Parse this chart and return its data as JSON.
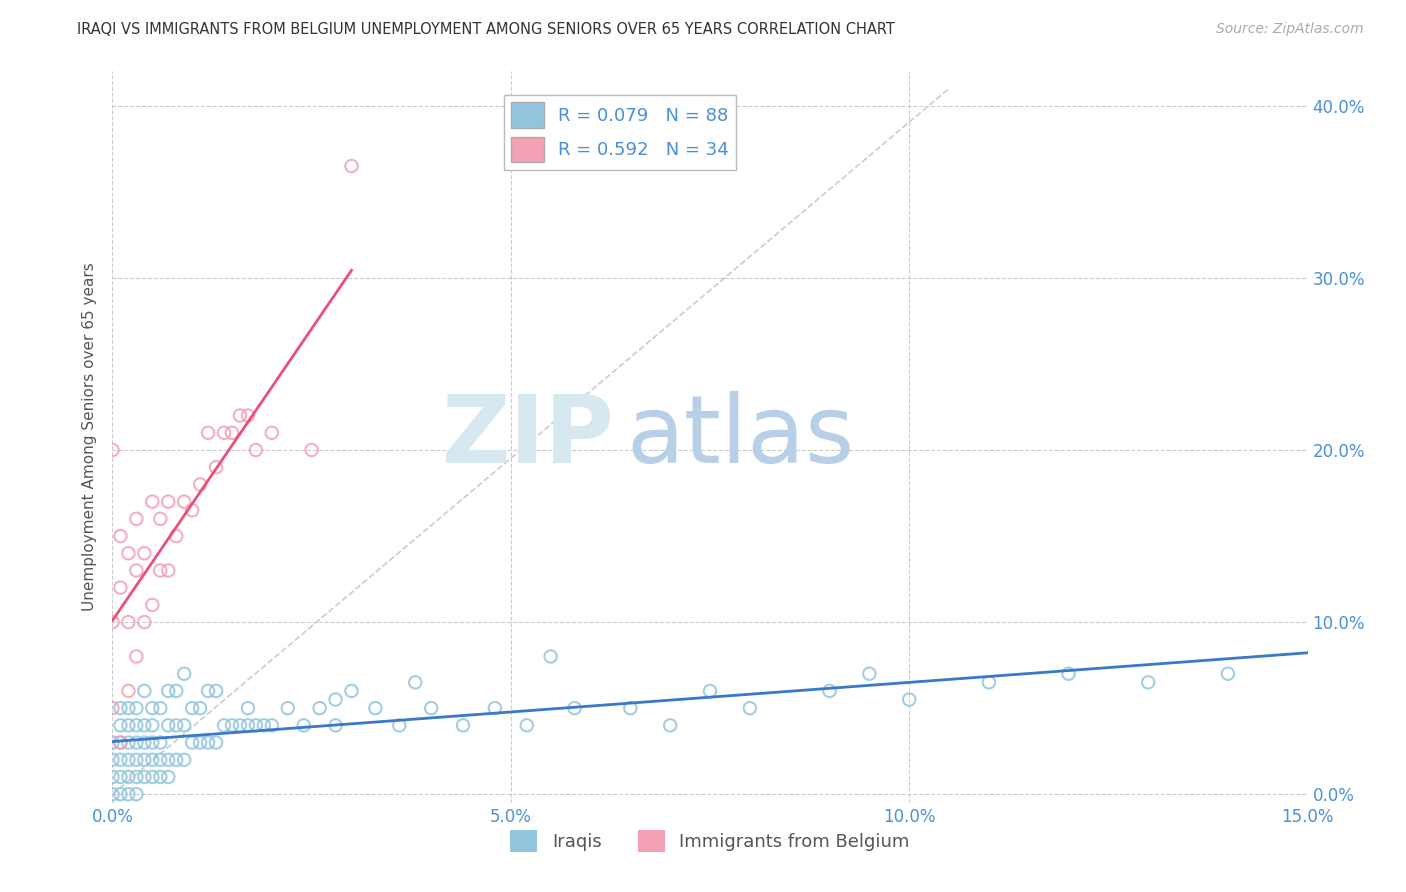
{
  "title": "IRAQI VS IMMIGRANTS FROM BELGIUM UNEMPLOYMENT AMONG SENIORS OVER 65 YEARS CORRELATION CHART",
  "source": "Source: ZipAtlas.com",
  "ylabel": "Unemployment Among Seniors over 65 years",
  "x_min": 0.0,
  "x_max": 0.15,
  "y_min": -0.005,
  "y_max": 0.42,
  "x_tick_labels": [
    "0.0%",
    "5.0%",
    "10.0%",
    "15.0%"
  ],
  "x_tick_values": [
    0.0,
    0.05,
    0.1,
    0.15
  ],
  "y_tick_labels": [
    "0.0%",
    "10.0%",
    "20.0%",
    "30.0%",
    "40.0%"
  ],
  "y_tick_values": [
    0.0,
    0.1,
    0.2,
    0.3,
    0.4
  ],
  "iraqis_color": "#92c5de",
  "belgium_color": "#f4a0b5",
  "iraqis_line_color": "#3a78c9",
  "belgium_line_color": "#e8507a",
  "R_iraqis": 0.079,
  "N_iraqis": 88,
  "R_belgium": 0.592,
  "N_belgium": 34,
  "legend_label_iraqis": "Iraqis",
  "legend_label_belgium": "Immigrants from Belgium",
  "background_color": "#ffffff",
  "grid_color": "#cccccc",
  "label_color": "#4a90d9",
  "iraqis_x": [
    0.0,
    0.0,
    0.0,
    0.0,
    0.001,
    0.001,
    0.001,
    0.001,
    0.001,
    0.001,
    0.002,
    0.002,
    0.002,
    0.002,
    0.002,
    0.002,
    0.003,
    0.003,
    0.003,
    0.003,
    0.003,
    0.003,
    0.004,
    0.004,
    0.004,
    0.004,
    0.004,
    0.005,
    0.005,
    0.005,
    0.005,
    0.005,
    0.006,
    0.006,
    0.006,
    0.006,
    0.007,
    0.007,
    0.007,
    0.007,
    0.008,
    0.008,
    0.008,
    0.009,
    0.009,
    0.009,
    0.01,
    0.01,
    0.011,
    0.011,
    0.012,
    0.012,
    0.013,
    0.013,
    0.014,
    0.015,
    0.016,
    0.017,
    0.018,
    0.019,
    0.02,
    0.022,
    0.024,
    0.026,
    0.028,
    0.03,
    0.033,
    0.036,
    0.04,
    0.044,
    0.048,
    0.052,
    0.058,
    0.065,
    0.07,
    0.075,
    0.08,
    0.09,
    0.095,
    0.1,
    0.11,
    0.12,
    0.13,
    0.14,
    0.055,
    0.038,
    0.028,
    0.017
  ],
  "iraqis_y": [
    0.0,
    0.01,
    0.02,
    0.03,
    0.0,
    0.01,
    0.02,
    0.03,
    0.04,
    0.05,
    0.0,
    0.01,
    0.02,
    0.03,
    0.04,
    0.05,
    0.0,
    0.01,
    0.02,
    0.03,
    0.04,
    0.05,
    0.01,
    0.02,
    0.03,
    0.04,
    0.06,
    0.01,
    0.02,
    0.03,
    0.04,
    0.05,
    0.01,
    0.02,
    0.03,
    0.05,
    0.01,
    0.02,
    0.04,
    0.06,
    0.02,
    0.04,
    0.06,
    0.02,
    0.04,
    0.07,
    0.03,
    0.05,
    0.03,
    0.05,
    0.03,
    0.06,
    0.03,
    0.06,
    0.04,
    0.04,
    0.04,
    0.05,
    0.04,
    0.04,
    0.04,
    0.05,
    0.04,
    0.05,
    0.04,
    0.06,
    0.05,
    0.04,
    0.05,
    0.04,
    0.05,
    0.04,
    0.05,
    0.05,
    0.04,
    0.06,
    0.05,
    0.06,
    0.07,
    0.055,
    0.065,
    0.07,
    0.065,
    0.07,
    0.08,
    0.065,
    0.055,
    0.04
  ],
  "belgium_x": [
    0.0,
    0.0,
    0.0,
    0.001,
    0.001,
    0.001,
    0.002,
    0.002,
    0.002,
    0.003,
    0.003,
    0.003,
    0.004,
    0.004,
    0.005,
    0.005,
    0.006,
    0.006,
    0.007,
    0.007,
    0.008,
    0.009,
    0.01,
    0.011,
    0.012,
    0.013,
    0.014,
    0.015,
    0.016,
    0.017,
    0.018,
    0.02,
    0.025,
    0.03
  ],
  "belgium_y": [
    0.05,
    0.1,
    0.2,
    0.03,
    0.12,
    0.15,
    0.06,
    0.1,
    0.14,
    0.08,
    0.13,
    0.16,
    0.1,
    0.14,
    0.11,
    0.17,
    0.13,
    0.16,
    0.13,
    0.17,
    0.15,
    0.17,
    0.165,
    0.18,
    0.21,
    0.19,
    0.21,
    0.21,
    0.22,
    0.22,
    0.2,
    0.21,
    0.2,
    0.365
  ]
}
